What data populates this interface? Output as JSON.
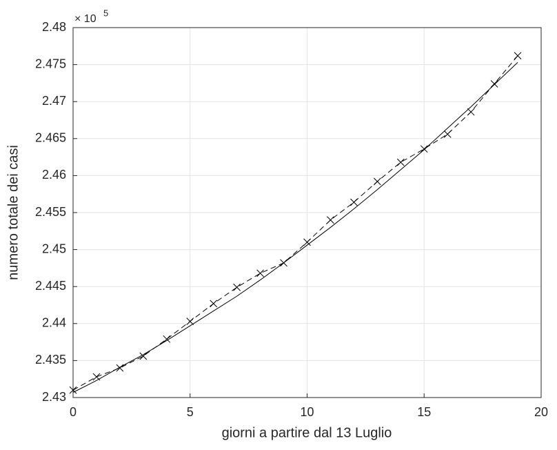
{
  "chart_data": {
    "type": "line",
    "xlabel": "giorni a partire dal 13 Luglio",
    "ylabel": "numero totale dei casi",
    "y_multiplier": {
      "base": "× 10",
      "exponent": "5"
    },
    "x": [
      0,
      1,
      2,
      3,
      4,
      5,
      6,
      7,
      8,
      9,
      10,
      11,
      12,
      13,
      14,
      15,
      16,
      17,
      18,
      19
    ],
    "series": [
      {
        "color": "#000000",
        "line_style": "dashed",
        "marker": "x",
        "values": [
          2.431,
          2.4328,
          2.434,
          2.4356,
          2.4379,
          2.4403,
          2.4427,
          2.4449,
          2.4468,
          2.4482,
          2.451,
          2.454,
          2.4564,
          2.4592,
          2.4618,
          2.4636,
          2.4656,
          2.4686,
          2.4724,
          2.4762
        ]
      },
      {
        "color": "#000000",
        "line_style": "solid",
        "marker": "none",
        "values": [
          2.4307,
          2.4323,
          2.4341,
          2.4358,
          2.4377,
          2.4397,
          2.4417,
          2.4437,
          2.4459,
          2.4482,
          2.4506,
          2.453,
          2.4555,
          2.4581,
          2.4608,
          2.4635,
          2.4664,
          2.4693,
          2.4723,
          2.4753
        ]
      }
    ],
    "xlim": [
      0,
      20
    ],
    "xticks": [
      0,
      5,
      10,
      15,
      20
    ],
    "ylim": [
      2.43,
      2.48
    ],
    "yticks": [
      2.43,
      2.435,
      2.44,
      2.445,
      2.45,
      2.455,
      2.46,
      2.465,
      2.47,
      2.475,
      2.48
    ],
    "grid": true
  }
}
